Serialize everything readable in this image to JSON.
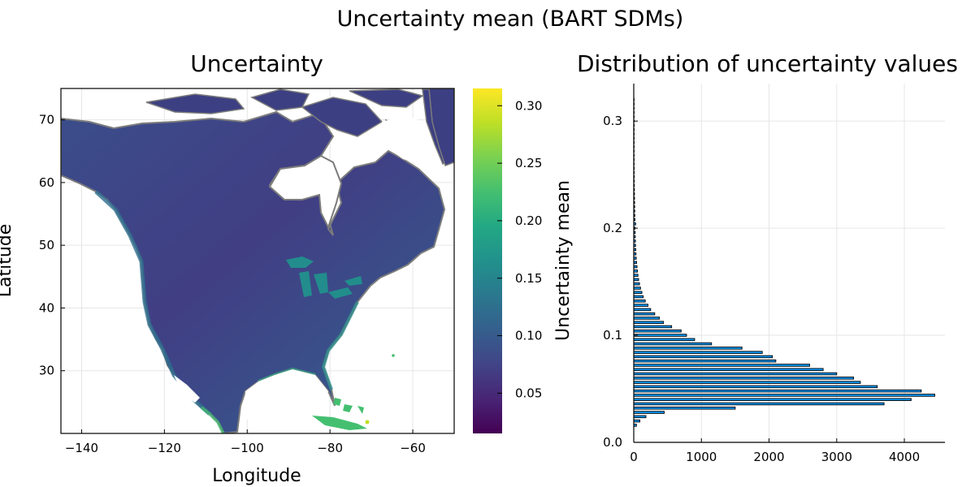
{
  "figure": {
    "suptitle": "Uncertainty mean (BART SDMs)"
  },
  "chart_data": [
    {
      "type": "heatmap",
      "title": "Uncertainty",
      "xlabel": "Longitude",
      "ylabel": "Latitude",
      "xlim": [
        -145,
        -50
      ],
      "ylim": [
        20,
        75
      ],
      "xticks": [
        -140,
        -120,
        -100,
        -80,
        -60
      ],
      "yticks": [
        30,
        40,
        50,
        60,
        70
      ],
      "grid": true,
      "colormap": "viridis",
      "colorbar": {
        "label": "Uncertainty mean",
        "range": [
          0.015,
          0.315
        ],
        "ticks": [
          0.05,
          0.1,
          0.15,
          0.2,
          0.25,
          0.3
        ],
        "tick_labels": [
          "0.05",
          "0.10",
          "0.15",
          "0.20",
          "0.25",
          "0.30"
        ]
      },
      "region": "North America",
      "dominant_value_range": [
        0.03,
        0.09
      ],
      "high_value_areas": [
        "Great Lakes",
        "Caribbean islands",
        "Mexican coast",
        "Pacific coast"
      ]
    },
    {
      "type": "bar",
      "orientation": "horizontal",
      "title": "Distribution of uncertainty values",
      "xlabel": "",
      "ylabel": "",
      "xlim": [
        0,
        4600
      ],
      "ylim": [
        0,
        0.335
      ],
      "xticks": [
        0,
        1000,
        2000,
        3000,
        4000
      ],
      "yticks": [
        0.0,
        0.1,
        0.2,
        0.3
      ],
      "ytick_labels": [
        "0.0",
        "0.1",
        "0.2",
        "0.3"
      ],
      "grid": true,
      "bar_color": "#009af9",
      "bin_width": 0.002,
      "bins": [
        {
          "y": 0.015,
          "count": 40
        },
        {
          "y": 0.019,
          "count": 90
        },
        {
          "y": 0.023,
          "count": 180
        },
        {
          "y": 0.027,
          "count": 450
        },
        {
          "y": 0.031,
          "count": 1500
        },
        {
          "y": 0.035,
          "count": 3700
        },
        {
          "y": 0.039,
          "count": 4100
        },
        {
          "y": 0.043,
          "count": 4450
        },
        {
          "y": 0.047,
          "count": 4250
        },
        {
          "y": 0.051,
          "count": 3600
        },
        {
          "y": 0.055,
          "count": 3350
        },
        {
          "y": 0.059,
          "count": 3250
        },
        {
          "y": 0.063,
          "count": 3000
        },
        {
          "y": 0.067,
          "count": 2800
        },
        {
          "y": 0.071,
          "count": 2600
        },
        {
          "y": 0.075,
          "count": 2100
        },
        {
          "y": 0.079,
          "count": 2050
        },
        {
          "y": 0.083,
          "count": 1900
        },
        {
          "y": 0.087,
          "count": 1600
        },
        {
          "y": 0.091,
          "count": 1150
        },
        {
          "y": 0.095,
          "count": 900
        },
        {
          "y": 0.099,
          "count": 780
        },
        {
          "y": 0.103,
          "count": 700
        },
        {
          "y": 0.107,
          "count": 560
        },
        {
          "y": 0.111,
          "count": 440
        },
        {
          "y": 0.115,
          "count": 380
        },
        {
          "y": 0.119,
          "count": 310
        },
        {
          "y": 0.123,
          "count": 250
        },
        {
          "y": 0.127,
          "count": 210
        },
        {
          "y": 0.131,
          "count": 170
        },
        {
          "y": 0.135,
          "count": 140
        },
        {
          "y": 0.139,
          "count": 120
        },
        {
          "y": 0.143,
          "count": 100
        },
        {
          "y": 0.147,
          "count": 85
        },
        {
          "y": 0.151,
          "count": 72
        },
        {
          "y": 0.155,
          "count": 62
        },
        {
          "y": 0.159,
          "count": 55
        },
        {
          "y": 0.163,
          "count": 48
        },
        {
          "y": 0.167,
          "count": 42
        },
        {
          "y": 0.171,
          "count": 37
        },
        {
          "y": 0.175,
          "count": 33
        },
        {
          "y": 0.179,
          "count": 30
        },
        {
          "y": 0.183,
          "count": 27
        },
        {
          "y": 0.187,
          "count": 25
        },
        {
          "y": 0.191,
          "count": 23
        },
        {
          "y": 0.195,
          "count": 21
        },
        {
          "y": 0.199,
          "count": 19
        },
        {
          "y": 0.203,
          "count": 28
        },
        {
          "y": 0.207,
          "count": 18
        },
        {
          "y": 0.211,
          "count": 16
        },
        {
          "y": 0.215,
          "count": 15
        },
        {
          "y": 0.219,
          "count": 14
        },
        {
          "y": 0.223,
          "count": 13
        },
        {
          "y": 0.227,
          "count": 12
        },
        {
          "y": 0.231,
          "count": 11
        },
        {
          "y": 0.235,
          "count": 10
        },
        {
          "y": 0.239,
          "count": 9
        },
        {
          "y": 0.243,
          "count": 8
        },
        {
          "y": 0.247,
          "count": 8
        },
        {
          "y": 0.251,
          "count": 7
        },
        {
          "y": 0.255,
          "count": 7
        },
        {
          "y": 0.259,
          "count": 6
        },
        {
          "y": 0.263,
          "count": 6
        },
        {
          "y": 0.267,
          "count": 5
        },
        {
          "y": 0.271,
          "count": 5
        },
        {
          "y": 0.275,
          "count": 4
        },
        {
          "y": 0.279,
          "count": 4
        },
        {
          "y": 0.283,
          "count": 4
        },
        {
          "y": 0.287,
          "count": 3
        },
        {
          "y": 0.291,
          "count": 3
        },
        {
          "y": 0.295,
          "count": 3
        },
        {
          "y": 0.299,
          "count": 2
        },
        {
          "y": 0.303,
          "count": 2
        },
        {
          "y": 0.307,
          "count": 2
        },
        {
          "y": 0.311,
          "count": 1
        },
        {
          "y": 0.315,
          "count": 1
        },
        {
          "y": 0.319,
          "count": 1
        }
      ]
    }
  ]
}
